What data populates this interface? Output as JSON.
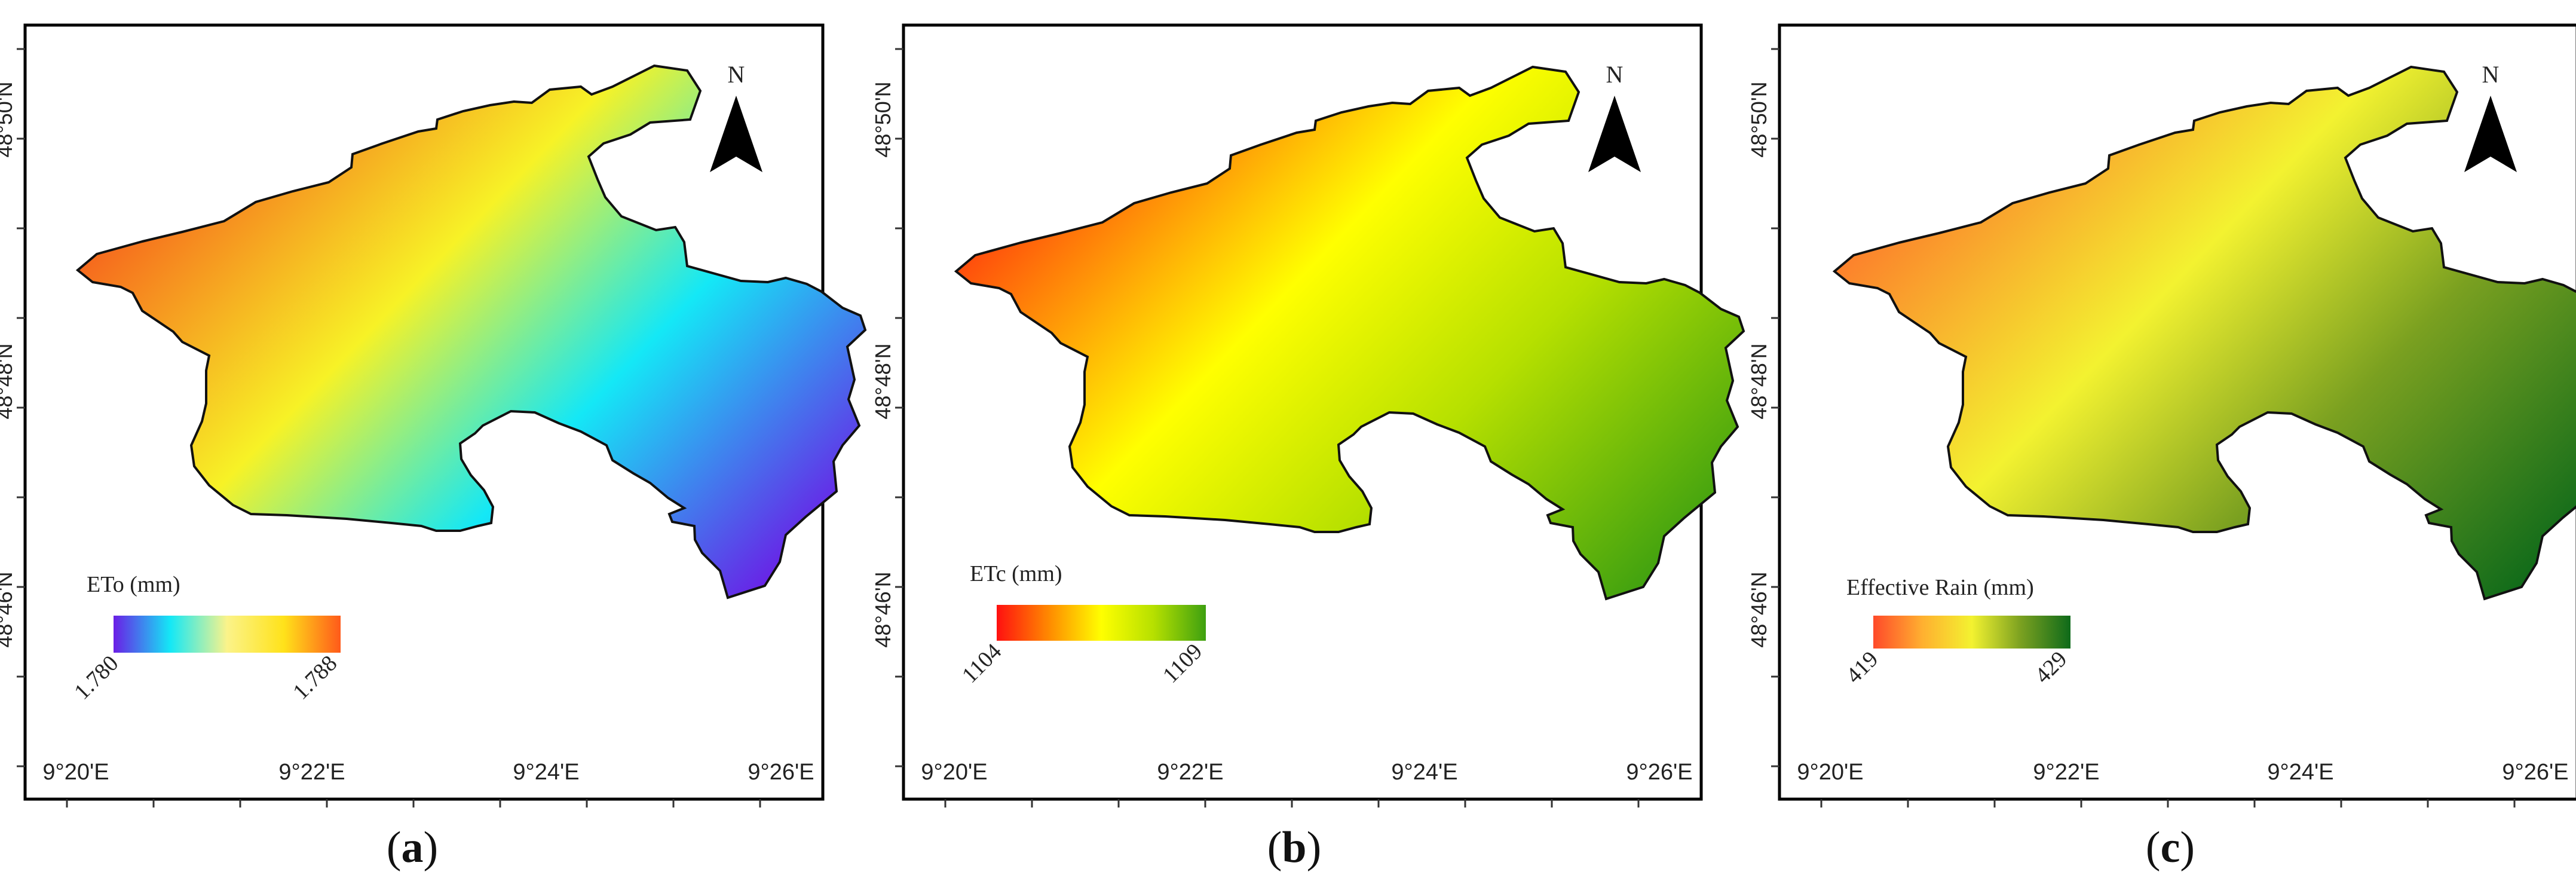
{
  "panels": [
    {
      "caption_letter": "a",
      "legend_title": "ETo (mm)",
      "legend_min": "1.780",
      "legend_max": "1.788",
      "ramp": [
        "#6a1ee6",
        "#14e8f6",
        "#fbf38a",
        "#ffe21a",
        "#ff5a1a"
      ],
      "fill_low": "#6a1ee6",
      "fill_mid_low": "#14e8f6",
      "fill_mid_high": "#f7f226",
      "fill_high": "#f53a1a"
    },
    {
      "caption_letter": "b",
      "legend_title": "ETc (mm)",
      "legend_min": "1104",
      "legend_max": "1109",
      "ramp": [
        "#ff1010",
        "#ff8a00",
        "#ffff00",
        "#b6e000",
        "#3ea010"
      ],
      "fill_low": "#3ea010",
      "fill_mid_low": "#b6e000",
      "fill_mid_high": "#ffff00",
      "fill_high": "#ff1010"
    },
    {
      "caption_letter": "c",
      "legend_title": "Effective Rain (mm)",
      "legend_min": "419",
      "legend_max": "429",
      "ramp": [
        "#ff4a2a",
        "#ffb030",
        "#f3f230",
        "#7aa020",
        "#0e6a1a"
      ],
      "fill_low": "#0e6a1a",
      "fill_mid_low": "#7aa020",
      "fill_mid_high": "#f3f230",
      "fill_high": "#ff5a2a"
    }
  ],
  "lat_labels": [
    "48°50'N",
    "48°48'N",
    "48°46'N"
  ],
  "lon_labels": [
    "9°20'E",
    "9°22'E",
    "9°24'E",
    "9°26'E"
  ],
  "north_label": "N"
}
